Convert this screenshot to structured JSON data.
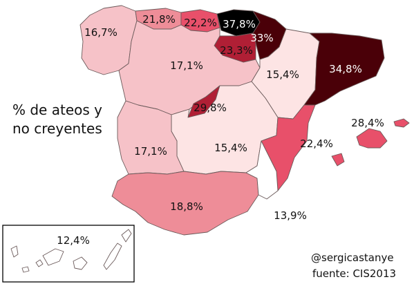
{
  "title_lines": [
    "% de ateos y",
    "no creyentes"
  ],
  "credit": {
    "author": "@sergicastanye",
    "source": "fuente: CIS2013"
  },
  "regions": [
    {
      "name": "Galicia",
      "label": "16,7%",
      "value": 16.7
    },
    {
      "name": "Asturias",
      "label": "21,8%",
      "value": 21.8
    },
    {
      "name": "Cantabria",
      "label": "22,2%",
      "value": 22.2
    },
    {
      "name": "País Vasco",
      "label": "37,8%",
      "value": 37.8
    },
    {
      "name": "Navarra",
      "label": "33%",
      "value": 33.0
    },
    {
      "name": "La Rioja",
      "label": "23,3%",
      "value": 23.3
    },
    {
      "name": "Castilla y León",
      "label": "17,1%",
      "value": 17.1
    },
    {
      "name": "Aragón",
      "label": "15,4%",
      "value": 15.4
    },
    {
      "name": "Cataluña",
      "label": "34,8%",
      "value": 34.8
    },
    {
      "name": "Madrid",
      "label": "29,8%",
      "value": 29.8
    },
    {
      "name": "Extremadura",
      "label": "17,1%",
      "value": 17.1
    },
    {
      "name": "Castilla-La Mancha",
      "label": "15,4%",
      "value": 15.4
    },
    {
      "name": "Comunidad Valenciana",
      "label": "22,4%",
      "value": 22.4
    },
    {
      "name": "Baleares",
      "label": "28,4%",
      "value": 28.4
    },
    {
      "name": "Andalucía",
      "label": "18,8%",
      "value": 18.8
    },
    {
      "name": "Murcia",
      "label": "13,9%",
      "value": 13.9
    },
    {
      "name": "Canarias",
      "label": "12,4%",
      "value": 12.4
    }
  ],
  "colors": {
    "lightest": "#fde4e4",
    "light": "#f6c2c8",
    "medium": "#ee8d98",
    "strong": "#e8506a",
    "deep": "#b01f35",
    "darkest": "#4a0008",
    "black": "#000000",
    "white": "#ffffff"
  }
}
